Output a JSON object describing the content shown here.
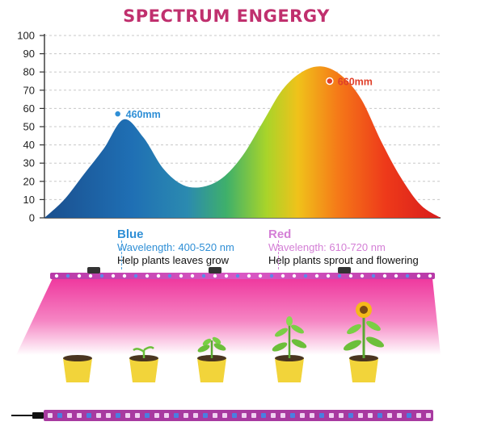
{
  "chart_data": {
    "type": "area",
    "title": "SPECTRUM   ENGERGY",
    "xlabel": "",
    "ylabel": "",
    "ylim": [
      0,
      100
    ],
    "yticks": [
      0,
      10,
      20,
      30,
      40,
      50,
      60,
      70,
      80,
      90,
      100
    ],
    "grid": true,
    "fill": "spectrum-gradient",
    "x": [
      0,
      5,
      10,
      15,
      20,
      25,
      30,
      35,
      40,
      45,
      50,
      55,
      60,
      65,
      70,
      75,
      80,
      85,
      90,
      95,
      100
    ],
    "values": [
      0,
      10,
      24,
      38,
      54,
      44,
      27,
      18,
      17,
      22,
      34,
      52,
      70,
      80,
      83,
      78,
      65,
      42,
      22,
      7,
      0
    ],
    "annotations": [
      {
        "label": "460mm",
        "x": 18.5,
        "y": 57,
        "color": "#2f8fd6"
      },
      {
        "label": "660mm",
        "x": 72,
        "y": 75,
        "color": "#e0402a"
      }
    ]
  },
  "bands": {
    "blue": {
      "name": "Blue",
      "wavelength": "Wavelength: 400-520 nm",
      "description": "Help plants leaves grow"
    },
    "red": {
      "name": "Red",
      "wavelength": "Wavelength: 610-720 nm",
      "description": "Help plants sprout and flowering"
    }
  },
  "illustration": {
    "glow_color": "#f03ca0",
    "pot_color": "#f2d43a",
    "plant_stages": [
      "soil",
      "sprout",
      "seedling",
      "young-plant",
      "flowering"
    ]
  }
}
